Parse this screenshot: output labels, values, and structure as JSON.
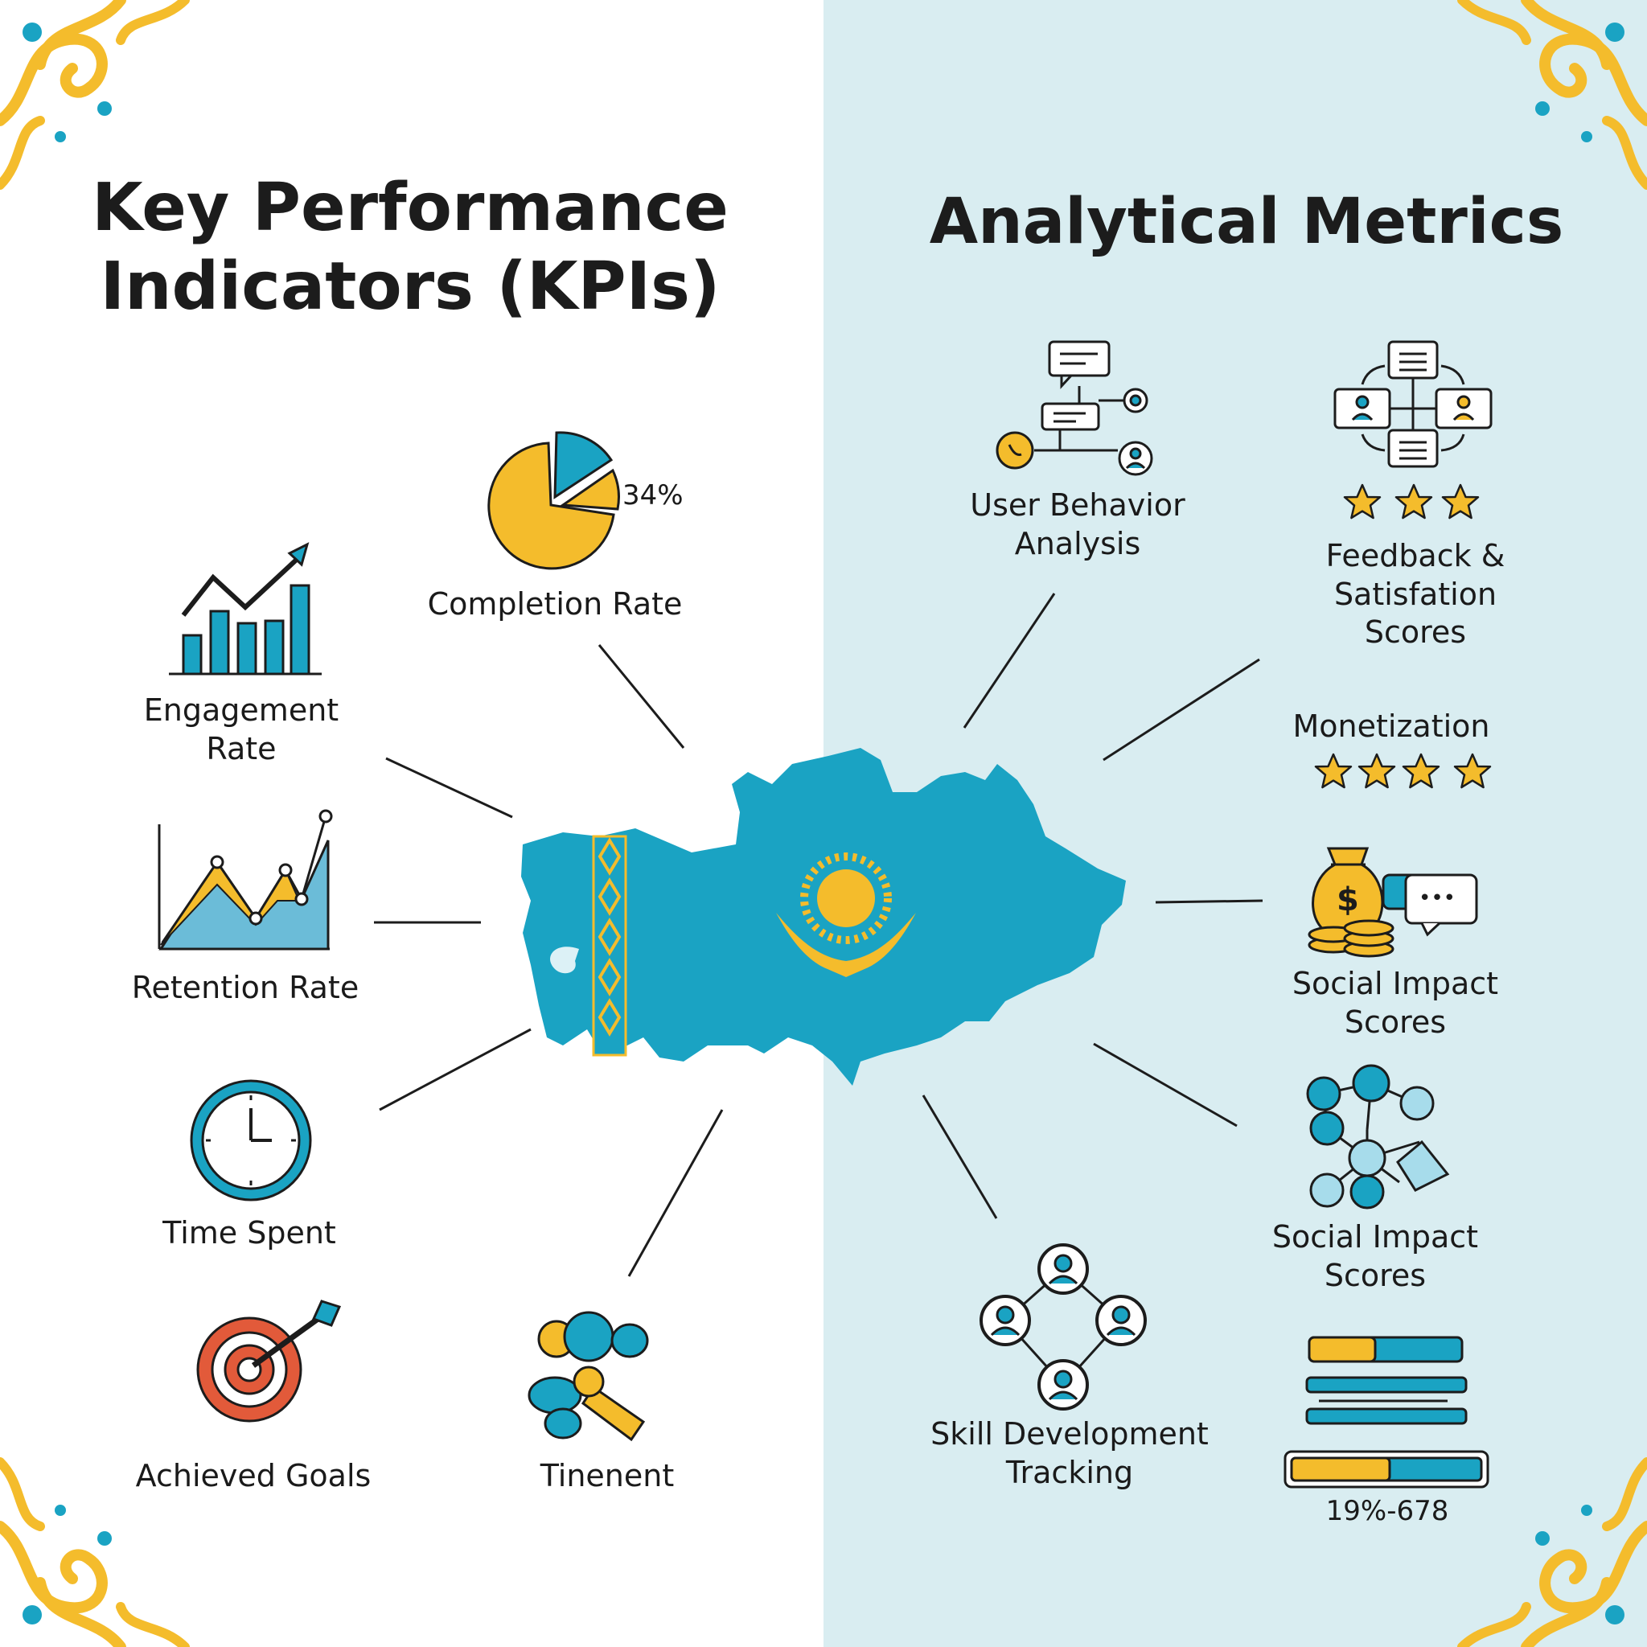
{
  "titles": {
    "left_line1": "Key Performance",
    "left_line2": "Indicators (KPIs)",
    "right": "Analytical Metrics"
  },
  "kpis": {
    "completion_rate": "Completion Rate",
    "completion_percent": "34%",
    "engagement_line1": "Engagement",
    "engagement_line2": "Rate",
    "retention_rate": "Retention Rate",
    "time_spent": "Time Spent",
    "achieved_goals": "Achieved Goals",
    "tinenent": "Tinenent"
  },
  "metrics": {
    "user_behavior_line1": "User Behavior",
    "user_behavior_line2": "Analysis",
    "feedback_line1": "Feedback &",
    "feedback_line2": "Satisfation",
    "feedback_line3": "Scores",
    "monetization": "Monetization",
    "social_impact_a_line1": "Social Impact",
    "social_impact_a_line2": "Scores",
    "social_impact_b_line1": "Social Impact",
    "social_impact_b_line2": "Scores",
    "skill_line1": "Skill Development",
    "skill_line2": "Tracking",
    "progress_label": "19%-678",
    "dollar_sign": "$",
    "ellipsis": "•••"
  },
  "ratings": {
    "feedback_stars": 3,
    "monetization_stars": 4
  },
  "colors": {
    "teal": "#1aa3c3",
    "yellow": "#f4bc2c",
    "red": "#e25a3a",
    "dark": "#1c1c1c",
    "right_bg": "#d9edf1"
  }
}
